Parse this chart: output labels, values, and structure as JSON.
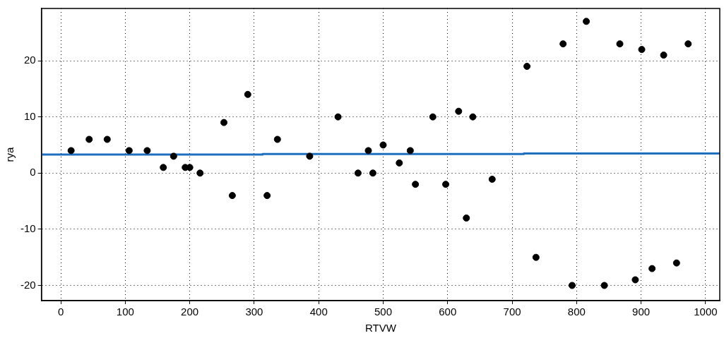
{
  "chart_data": {
    "type": "scatter",
    "xlabel": "RTVW",
    "ylabel": "rya",
    "xlim": [
      -30,
      1022
    ],
    "ylim": [
      -22.7,
      29.3
    ],
    "xticks": [
      0,
      100,
      200,
      300,
      400,
      500,
      600,
      700,
      800,
      900,
      1000
    ],
    "yticks": [
      -20,
      -10,
      0,
      10,
      20
    ],
    "grid": true,
    "legend": false,
    "line_style": "dotted",
    "series": [
      {
        "type": "scatter",
        "color": "#000000",
        "marker": "circle",
        "x": [
          16,
          44,
          72,
          106,
          134,
          159,
          175,
          193,
          200,
          216,
          253,
          266,
          290,
          320,
          336,
          386,
          430,
          461,
          477,
          484,
          500,
          525,
          542,
          550,
          577,
          597,
          617,
          629,
          639,
          669,
          723,
          737,
          779,
          793,
          815,
          843,
          867,
          891,
          901,
          917,
          935,
          955,
          973
        ],
        "values": [
          4,
          6,
          6,
          4,
          4,
          1,
          3,
          1,
          1,
          0,
          9,
          -4,
          14,
          -4,
          6,
          3,
          10,
          0,
          4,
          0,
          5,
          1.8,
          4,
          -2,
          10,
          -2,
          11,
          -8,
          10,
          -1.1,
          19,
          -15,
          23,
          -20,
          27,
          -20,
          23,
          -19,
          22,
          -17,
          21,
          -16,
          23
        ]
      },
      {
        "type": "line",
        "color": "#1f6fbf",
        "marker": "none",
        "line_style": "solid",
        "x": [
          -30,
          313,
          313,
          718,
          718,
          1022
        ],
        "values": [
          3.3,
          3.3,
          3.4,
          3.4,
          3.5,
          3.5
        ]
      }
    ]
  }
}
